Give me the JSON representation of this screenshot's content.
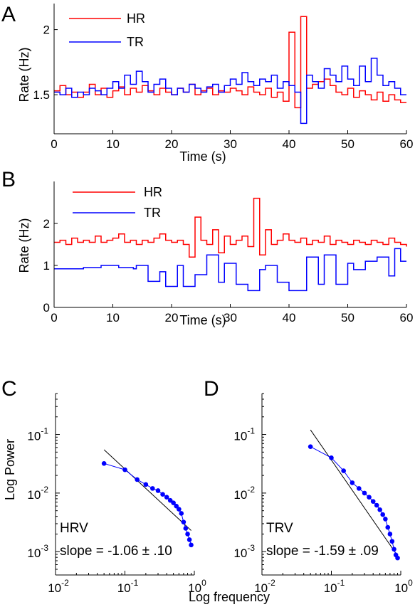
{
  "chart_data": [
    {
      "panel": "A",
      "type": "line",
      "step": true,
      "xlabel": "Time (s)",
      "ylabel": "Rate (Hz)",
      "xlim": [
        0,
        60
      ],
      "ylim": [
        1.2,
        2.2
      ],
      "xticks": [
        0,
        10,
        20,
        30,
        40,
        50,
        60
      ],
      "yticks": [
        1.5,
        2
      ],
      "grid": false,
      "legend": "top-left",
      "series": [
        {
          "name": "HR",
          "color": "#ff0000",
          "x": [
            0,
            1,
            2,
            3,
            4,
            5,
            6,
            7,
            8,
            9,
            10,
            11,
            12,
            13,
            14,
            15,
            16,
            17,
            18,
            19,
            20,
            21,
            22,
            23,
            24,
            25,
            26,
            27,
            28,
            29,
            30,
            31,
            32,
            33,
            34,
            35,
            36,
            37,
            38,
            39,
            40,
            41,
            42,
            43,
            44,
            45,
            46,
            47,
            48,
            49,
            50,
            51,
            52,
            53,
            54,
            55,
            56,
            57,
            58,
            59,
            60
          ],
          "y": [
            1.53,
            1.57,
            1.5,
            1.52,
            1.48,
            1.52,
            1.58,
            1.5,
            1.55,
            1.48,
            1.53,
            1.56,
            1.5,
            1.55,
            1.52,
            1.57,
            1.53,
            1.5,
            1.55,
            1.52,
            1.5,
            1.55,
            1.52,
            1.58,
            1.5,
            1.53,
            1.55,
            1.5,
            1.53,
            1.52,
            1.55,
            1.53,
            1.5,
            1.56,
            1.52,
            1.5,
            1.55,
            1.48,
            1.52,
            1.45,
            1.98,
            1.4,
            2.1,
            1.55,
            1.58,
            1.6,
            1.62,
            1.57,
            1.52,
            1.5,
            1.55,
            1.48,
            1.53,
            1.5,
            1.46,
            1.52,
            1.45,
            1.5,
            1.46,
            1.44,
            1.44
          ]
        },
        {
          "name": "TR",
          "color": "#0000ff",
          "x": [
            0,
            1,
            2,
            3,
            4,
            5,
            6,
            7,
            8,
            9,
            10,
            11,
            12,
            13,
            14,
            15,
            16,
            17,
            18,
            19,
            20,
            21,
            22,
            23,
            24,
            25,
            26,
            27,
            28,
            29,
            30,
            31,
            32,
            33,
            34,
            35,
            36,
            37,
            38,
            39,
            40,
            41,
            42,
            43,
            44,
            45,
            46,
            47,
            48,
            49,
            50,
            51,
            52,
            53,
            54,
            55,
            56,
            57,
            58,
            59,
            60
          ],
          "y": [
            1.52,
            1.5,
            1.55,
            1.48,
            1.52,
            1.5,
            1.55,
            1.53,
            1.5,
            1.55,
            1.6,
            1.55,
            1.65,
            1.58,
            1.68,
            1.6,
            1.52,
            1.58,
            1.62,
            1.55,
            1.5,
            1.55,
            1.52,
            1.58,
            1.55,
            1.52,
            1.56,
            1.58,
            1.52,
            1.57,
            1.62,
            1.58,
            1.67,
            1.6,
            1.57,
            1.62,
            1.6,
            1.65,
            1.55,
            1.6,
            1.57,
            1.52,
            1.28,
            1.65,
            1.6,
            1.55,
            1.7,
            1.65,
            1.6,
            1.72,
            1.62,
            1.57,
            1.72,
            1.6,
            1.78,
            1.65,
            1.57,
            1.6,
            1.55,
            1.5,
            1.5
          ]
        }
      ]
    },
    {
      "panel": "B",
      "type": "line",
      "step": true,
      "xlabel": "Time (s)",
      "ylabel": "Rate (Hz)",
      "xlim": [
        0,
        60
      ],
      "ylim": [
        0,
        3
      ],
      "xticks": [
        0,
        10,
        20,
        30,
        40,
        50,
        60
      ],
      "yticks": [
        0,
        1,
        2
      ],
      "grid": false,
      "legend": "top-left",
      "series": [
        {
          "name": "HR",
          "color": "#ff0000",
          "x": [
            0,
            1,
            2,
            3,
            4,
            5,
            6,
            7,
            8,
            9,
            10,
            11,
            12,
            13,
            14,
            15,
            16,
            17,
            18,
            19,
            20,
            21,
            22,
            23,
            24,
            25,
            26,
            27,
            28,
            29,
            30,
            31,
            32,
            33,
            34,
            35,
            36,
            37,
            38,
            39,
            40,
            41,
            42,
            43,
            44,
            45,
            46,
            47,
            48,
            49,
            50,
            51,
            52,
            53,
            54,
            55,
            56,
            57,
            58,
            59,
            60
          ],
          "y": [
            1.55,
            1.6,
            1.5,
            1.65,
            1.55,
            1.6,
            1.55,
            1.7,
            1.55,
            1.6,
            1.65,
            1.75,
            1.55,
            1.6,
            1.5,
            1.6,
            1.55,
            1.65,
            1.75,
            1.6,
            1.55,
            1.6,
            1.5,
            1.2,
            2.15,
            1.6,
            1.5,
            1.85,
            1.3,
            1.7,
            1.5,
            1.6,
            1.7,
            1.45,
            2.6,
            1.25,
            1.85,
            1.5,
            1.6,
            1.75,
            1.6,
            1.55,
            1.65,
            1.5,
            1.6,
            1.55,
            1.7,
            1.5,
            1.6,
            1.55,
            1.5,
            1.6,
            1.55,
            1.5,
            1.6,
            1.55,
            1.5,
            1.65,
            1.55,
            1.5,
            1.45
          ]
        },
        {
          "name": "TR",
          "color": "#0000ff",
          "x": [
            0,
            2,
            5,
            8,
            11,
            13.5,
            14,
            16,
            18,
            19,
            21,
            22,
            24,
            26,
            28,
            29,
            31,
            33,
            35,
            36,
            38,
            40,
            43,
            45,
            46,
            48,
            50,
            51,
            53,
            55,
            57,
            58,
            59,
            60
          ],
          "y": [
            0.92,
            0.92,
            0.95,
            1.0,
            0.95,
            0.92,
            1.0,
            0.62,
            0.85,
            0.5,
            1.0,
            0.5,
            0.78,
            1.25,
            0.6,
            1.05,
            0.55,
            0.4,
            0.9,
            1.0,
            0.6,
            0.4,
            1.2,
            0.55,
            1.25,
            0.55,
            1.05,
            0.9,
            1.1,
            1.2,
            0.75,
            1.4,
            1.1,
            1.1
          ]
        }
      ]
    },
    {
      "panel": "C",
      "type": "scatter",
      "xlabel": "",
      "ylabel": "Log Power",
      "xscale": "log",
      "yscale": "log",
      "xlim": [
        0.01,
        1
      ],
      "ylim": [
        0.0004,
        0.5
      ],
      "xticks": [
        0.01,
        0.1,
        1
      ],
      "yticks": [
        0.001,
        0.01,
        0.1
      ],
      "label": "HRV",
      "annotation": "slope = -1.06 ± .10",
      "points": {
        "color": "#0000ff",
        "x": [
          0.05,
          0.1,
          0.15,
          0.2,
          0.25,
          0.3,
          0.35,
          0.4,
          0.45,
          0.5,
          0.55,
          0.6,
          0.65,
          0.7,
          0.75,
          0.8,
          0.85,
          0.9
        ],
        "y": [
          0.032,
          0.025,
          0.017,
          0.014,
          0.012,
          0.011,
          0.0095,
          0.0085,
          0.0075,
          0.0068,
          0.006,
          0.0053,
          0.0045,
          0.0032,
          0.0025,
          0.002,
          0.0016,
          0.0013
        ]
      },
      "fit_line": {
        "x": [
          0.05,
          0.9
        ],
        "y": [
          0.055,
          0.0023
        ]
      }
    },
    {
      "panel": "D",
      "type": "scatter",
      "xlabel": "Log frequency",
      "ylabel": "",
      "xscale": "log",
      "yscale": "log",
      "xlim": [
        0.01,
        1
      ],
      "ylim": [
        0.0004,
        0.5
      ],
      "xticks": [
        0.01,
        0.1,
        1
      ],
      "yticks": [
        0.001,
        0.01,
        0.1
      ],
      "label": "TRV",
      "annotation": "slope = -1.59 ± .09",
      "points": {
        "color": "#0000ff",
        "x": [
          0.05,
          0.1,
          0.15,
          0.2,
          0.25,
          0.3,
          0.35,
          0.4,
          0.45,
          0.5,
          0.55,
          0.6,
          0.65,
          0.7,
          0.75,
          0.8,
          0.85,
          0.9
        ],
        "y": [
          0.062,
          0.04,
          0.024,
          0.015,
          0.012,
          0.01,
          0.0085,
          0.0072,
          0.0062,
          0.0052,
          0.0043,
          0.0036,
          0.0026,
          0.002,
          0.0015,
          0.0011,
          0.00088,
          0.00078
        ]
      },
      "fit_line": {
        "x": [
          0.05,
          0.9
        ],
        "y": [
          0.12,
          0.00085
        ]
      }
    }
  ],
  "panels": {
    "A": {
      "letter": "A",
      "legend": [
        "HR",
        "TR"
      ]
    },
    "B": {
      "letter": "B",
      "legend": [
        "HR",
        "TR"
      ]
    },
    "C": {
      "letter": "C"
    },
    "D": {
      "letter": "D"
    }
  }
}
